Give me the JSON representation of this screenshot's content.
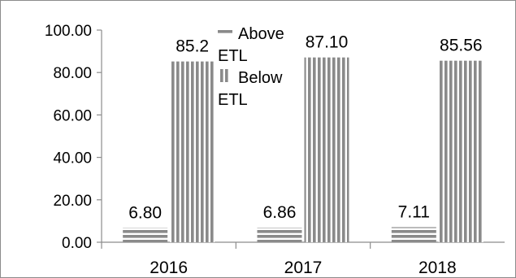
{
  "chart_data": {
    "type": "bar",
    "categories": [
      "2016",
      "2017",
      "2018"
    ],
    "series": [
      {
        "name": "Above ETL",
        "values": [
          6.8,
          6.86,
          7.11
        ],
        "labels": [
          "6.80",
          "6.86",
          "7.11"
        ],
        "pattern": "horizontal-stripes",
        "color": "#8a8a8a"
      },
      {
        "name": "Below ETL",
        "values": [
          85.2,
          87.1,
          85.56
        ],
        "labels": [
          "85.2",
          "87.10",
          "85.56"
        ],
        "pattern": "vertical-stripes",
        "color": "#8a8a8a"
      }
    ],
    "ylim": [
      0,
      100
    ],
    "yticks": [
      "0.00",
      "20.00",
      "40.00",
      "60.00",
      "80.00",
      "100.00"
    ],
    "legend": {
      "position": "top-center",
      "entries": [
        {
          "lines": [
            "Above",
            "ETL"
          ]
        },
        {
          "lines": [
            "Below",
            "ETL"
          ]
        }
      ]
    },
    "grid": false,
    "title": "",
    "xlabel": "",
    "ylabel": ""
  }
}
